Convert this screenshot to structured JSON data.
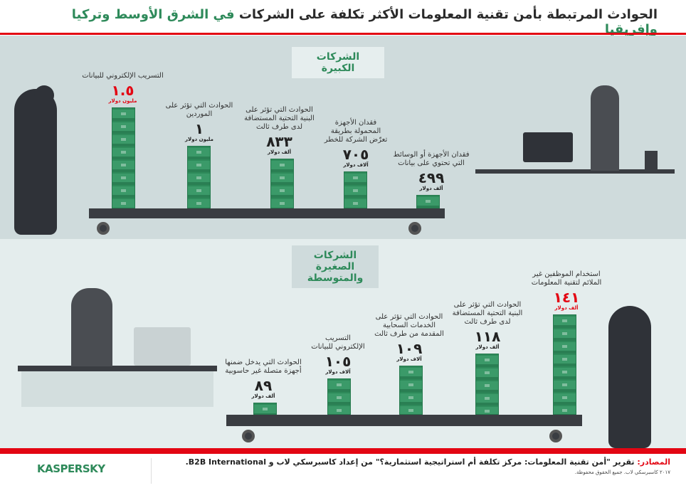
{
  "title": {
    "part1": "الحوادث المرتبطة بأمن تقنية المعلومات الأكثر تكلفة على الشركات ",
    "part2": "في الشرق الأوسط وتركيا وإفريقيا"
  },
  "large": {
    "heading": "الشركات الكبيرة",
    "items": [
      {
        "label": "التسريب الإلكتروني للبيانات",
        "value": "١.٥",
        "unit": "مليون دولار",
        "value_usd_thousands": 1500
      },
      {
        "label": "الحوادث التي تؤثر على الموردين",
        "value": "١",
        "unit": "مليون دولار",
        "value_usd_thousands": 1000
      },
      {
        "label": "الحوادث التي تؤثر على البنية التحتية المستضافة لدى طرف ثالث",
        "value": "٨٣٣",
        "unit": "ألف دولار",
        "value_usd_thousands": 833
      },
      {
        "label": "فقدان الأجهزة المحمولة بطريقة تعرّض الشركة للخطر",
        "value": "٧٠٥",
        "unit": "آلاف دولار",
        "value_usd_thousands": 705
      },
      {
        "label": "فقدان الأجهزة أو الوسائط التي تحتوي على بيانات",
        "value": "٤٩٩",
        "unit": "ألف دولار",
        "value_usd_thousands": 499
      }
    ]
  },
  "smb": {
    "heading": "الشركات الصغيرة والمتوسطة",
    "items": [
      {
        "label": "الحوادث التي يدخل ضمنها أجهزة متصلة غير حاسوبية",
        "value": "٨٩",
        "unit": "ألف دولار",
        "value_usd_thousands": 89
      },
      {
        "label": "التسريب الإلكتروني للبيانات",
        "value": "١٠٥",
        "unit": "آلاف دولار",
        "value_usd_thousands": 105
      },
      {
        "label": "الحوادث التي تؤثر على الخدمات السحابية المقدمة من طرف ثالث",
        "value": "١٠٩",
        "unit": "آلاف دولار",
        "value_usd_thousands": 109
      },
      {
        "label": "الحوادث التي تؤثر على البنية التحتية المستضافة لدى طرف ثالث",
        "value": "١١٨",
        "unit": "ألف دولار",
        "value_usd_thousands": 118
      },
      {
        "label": "استخدام الموظفين غير الملائم لتقنية المعلومات",
        "value": "١٤١",
        "unit": "ألف دولار",
        "value_usd_thousands": 141
      }
    ]
  },
  "footer": {
    "source_label": "المصادر:",
    "source_text": " تقرير \"أمن تقنية المعلومات: مركز تكلفة أم استراتيجية استثمارية؟\" من إعداد كاسبرسكي لاب و B2B International.",
    "copyright": "٢٠١٧ كاسبرسكي لاب. جميع الحقوق محفوظة.",
    "logo": "KASPERSKY"
  },
  "colors": {
    "accent": "#e30613",
    "green": "#2e8a5a"
  }
}
